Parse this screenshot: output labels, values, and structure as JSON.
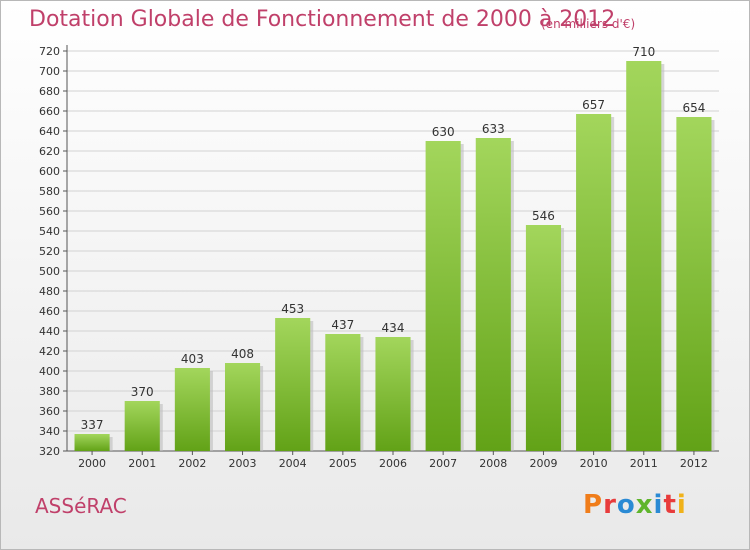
{
  "header": {
    "title": "Dotation Globale de Fonctionnement de 2000 à 2012",
    "subtitle": "(en milliers d'€)"
  },
  "footer": {
    "commune": "ASSéRAC",
    "logo_text": "Proxiti"
  },
  "colors": {
    "title": "#c0406a",
    "bar_top": "#a3d65c",
    "bar_bottom": "#62a217",
    "logo_letters": [
      "#f07d1a",
      "#e83c3c",
      "#2a8ad4",
      "#5fb52c",
      "#2a8ad4",
      "#e83c3c",
      "#f0b21a"
    ]
  },
  "chart_data": {
    "type": "bar",
    "categories": [
      "2000",
      "2001",
      "2002",
      "2003",
      "2004",
      "2005",
      "2006",
      "2007",
      "2008",
      "2009",
      "2010",
      "2011",
      "2012"
    ],
    "values": [
      337,
      370,
      403,
      408,
      453,
      437,
      434,
      630,
      633,
      546,
      657,
      710,
      654
    ],
    "ylim": [
      320,
      720
    ],
    "yticks": [
      320,
      340,
      360,
      380,
      400,
      420,
      440,
      460,
      480,
      500,
      520,
      540,
      560,
      580,
      600,
      620,
      640,
      660,
      680,
      700,
      720
    ],
    "grid": true,
    "title": "Dotation Globale de Fonctionnement de 2000 à 2012",
    "xlabel": "",
    "ylabel": ""
  }
}
